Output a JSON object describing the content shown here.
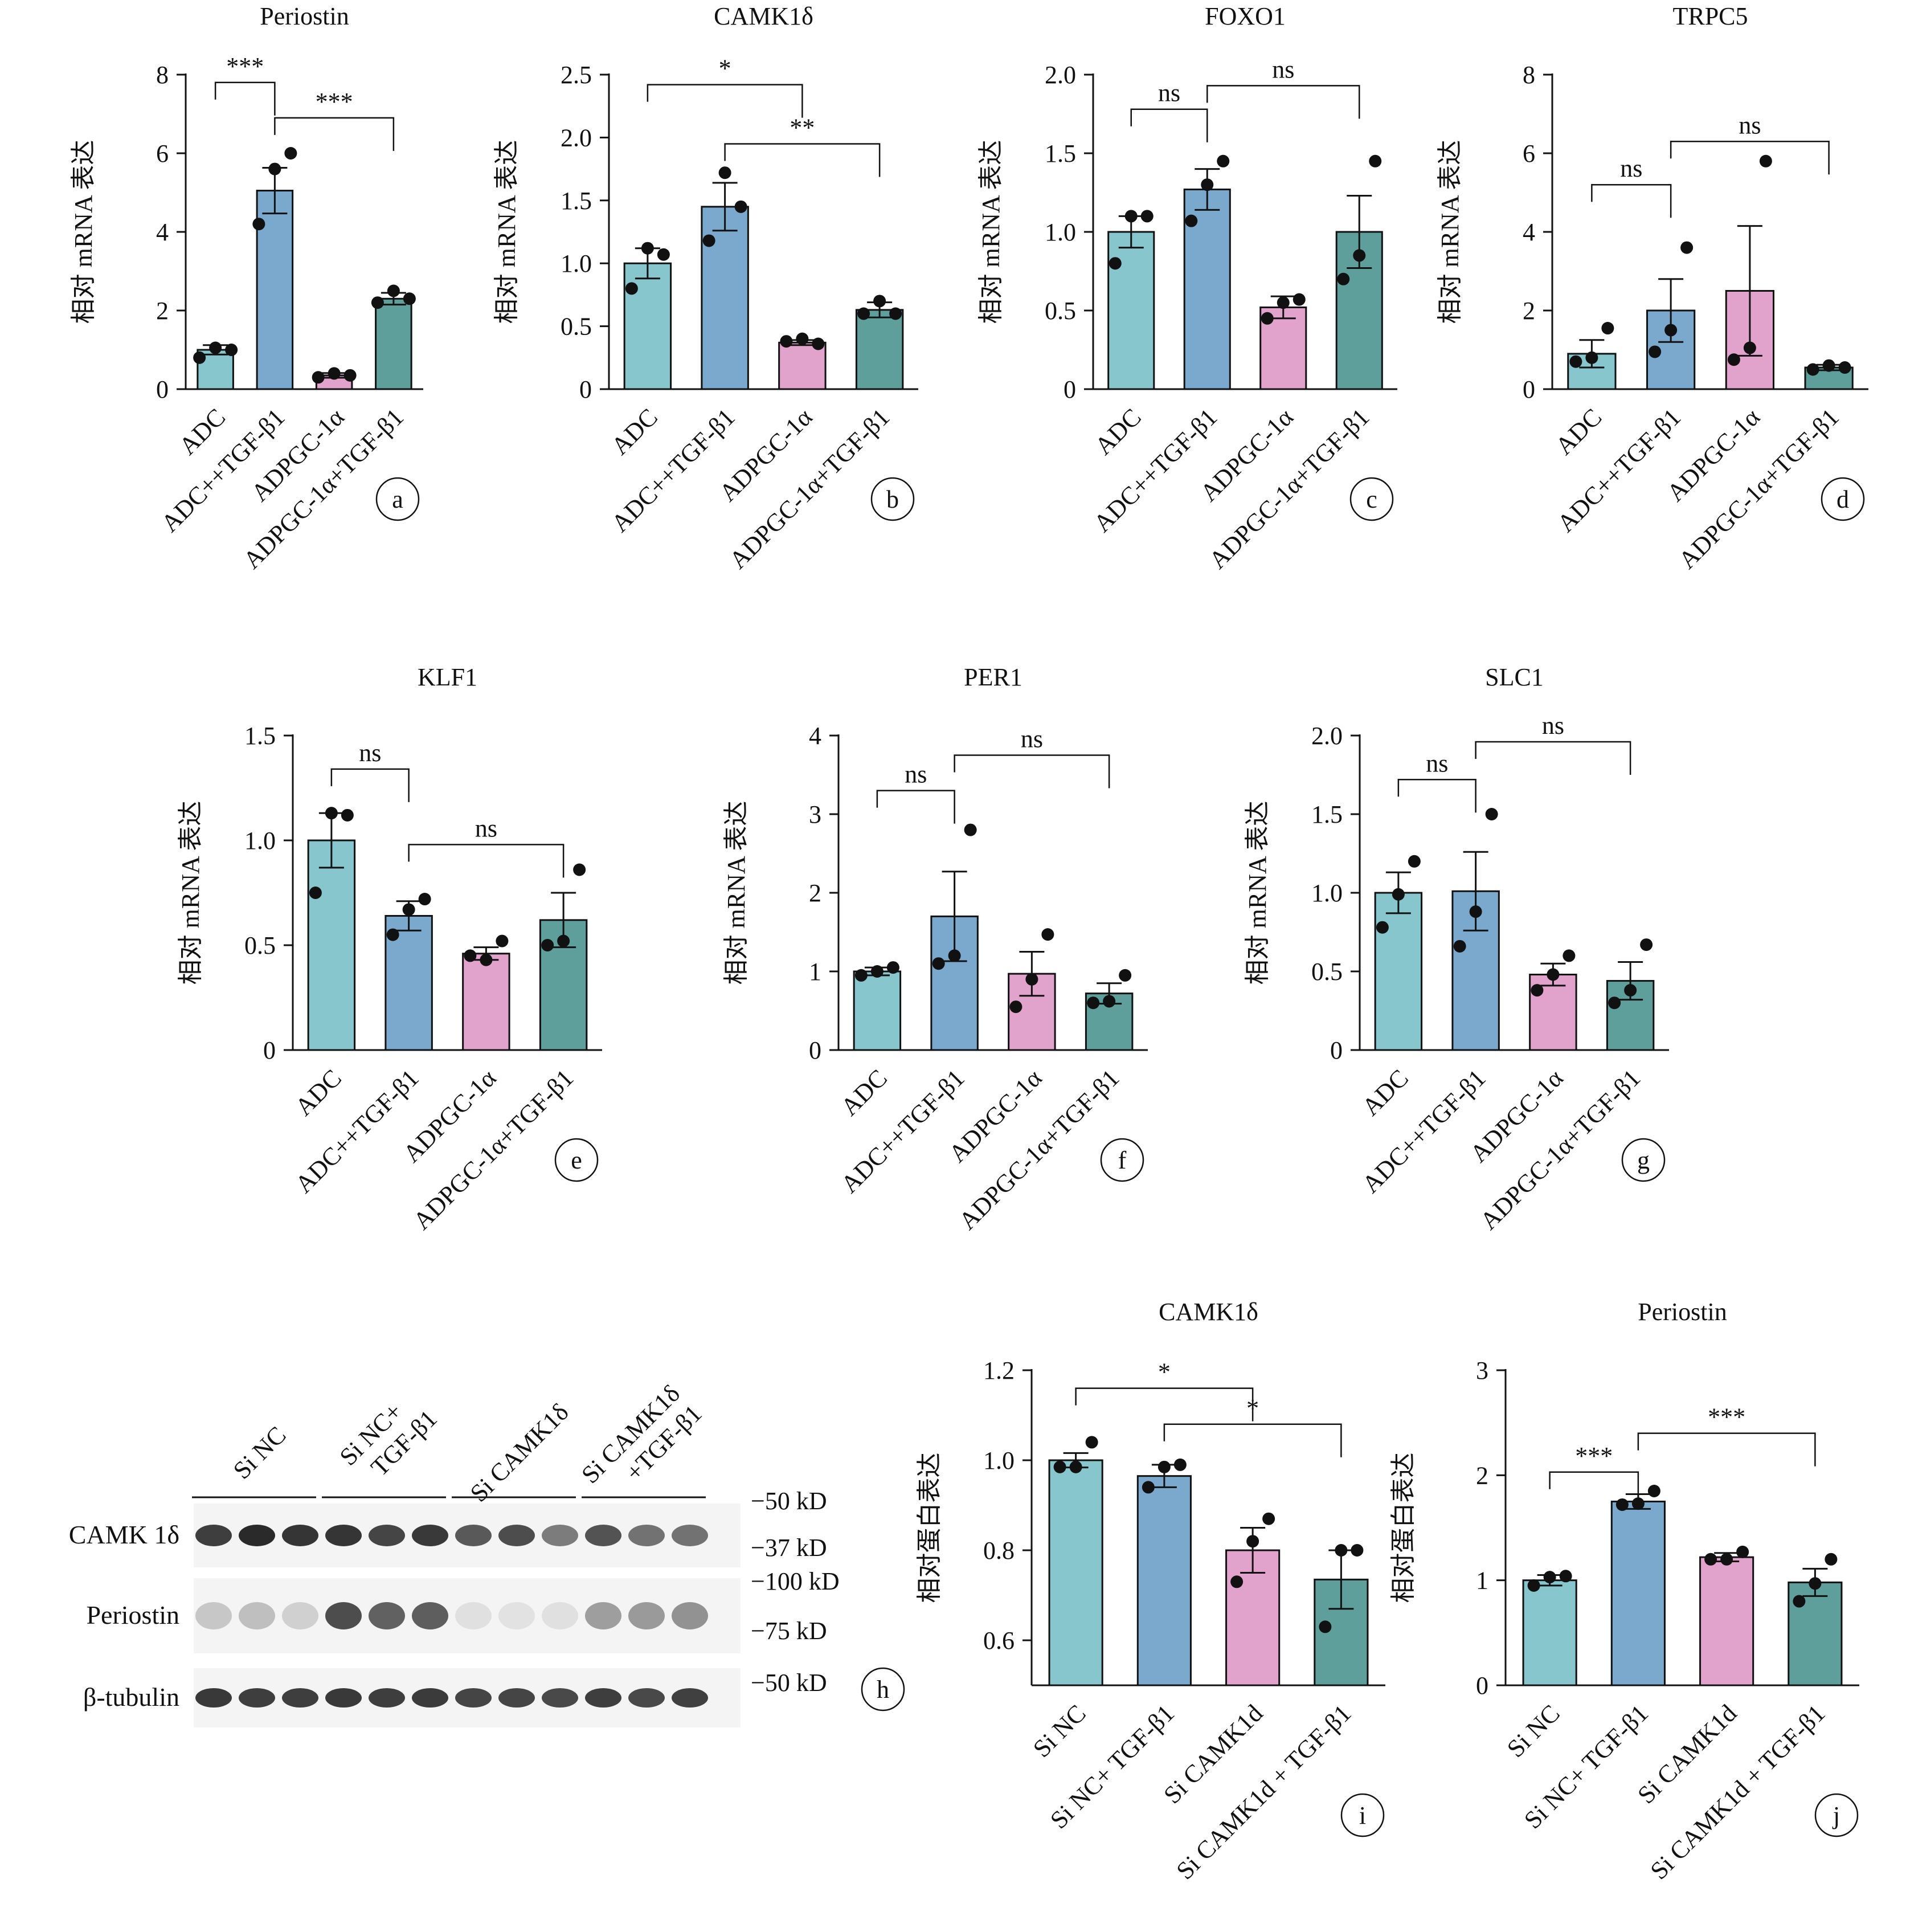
{
  "chart_data": [
    {
      "id": "a",
      "type": "bar",
      "title": "Periostin",
      "ylabel": "相对 mRNA 表达",
      "ylim": [
        0,
        8
      ],
      "yticks": [
        0,
        2,
        4,
        6,
        8
      ],
      "ytick_labels": [
        "0",
        "2",
        "4",
        "6",
        "8"
      ],
      "categories": [
        "ADC",
        "ADC++TGF-β1",
        "ADPGC-1α",
        "ADPGC-1α+TGF-β1"
      ],
      "values": [
        1.0,
        5.05,
        0.35,
        2.3
      ],
      "errors": [
        0.12,
        0.58,
        0.06,
        0.15
      ],
      "points": [
        [
          0.8,
          1.05,
          1.0
        ],
        [
          4.2,
          5.6,
          6.0
        ],
        [
          0.3,
          0.4,
          0.35
        ],
        [
          2.2,
          2.5,
          2.3
        ]
      ],
      "significance": [
        {
          "from": 0,
          "to": 1,
          "label": "***",
          "y": 7.8
        },
        {
          "from": 1,
          "to": 3,
          "label": "***",
          "y": 6.9
        }
      ]
    },
    {
      "id": "b",
      "type": "bar",
      "title": "CAMK1δ",
      "ylabel": "相对 mRNA 表达",
      "ylim": [
        0,
        2.5
      ],
      "yticks": [
        0,
        0.5,
        1.0,
        1.5,
        2.0,
        2.5
      ],
      "ytick_labels": [
        "0",
        "0.5",
        "1.0",
        "1.5",
        "2.0",
        "2.5"
      ],
      "categories": [
        "ADC",
        "ADC++TGF-β1",
        "ADPGC-1α",
        "ADPGC-1α+TGF-β1"
      ],
      "values": [
        1.0,
        1.45,
        0.37,
        0.63
      ],
      "errors": [
        0.12,
        0.19,
        0.02,
        0.06
      ],
      "points": [
        [
          0.8,
          1.12,
          1.07
        ],
        [
          1.18,
          1.72,
          1.45
        ],
        [
          0.38,
          0.4,
          0.36
        ],
        [
          0.6,
          0.7,
          0.6
        ]
      ],
      "significance": [
        {
          "from": 0,
          "to": 2,
          "label": "*",
          "y": 2.42
        },
        {
          "from": 1,
          "to": 3,
          "label": "**",
          "y": 1.95
        }
      ]
    },
    {
      "id": "c",
      "type": "bar",
      "title": "FOXO1",
      "ylabel": "相对 mRNA 表达",
      "ylim": [
        0,
        2.0
      ],
      "yticks": [
        0,
        0.5,
        1.0,
        1.5,
        2.0
      ],
      "ytick_labels": [
        "0",
        "0.5",
        "1.0",
        "1.5",
        "2.0"
      ],
      "categories": [
        "ADC",
        "ADC++TGF-β1",
        "ADPGC-1α",
        "ADPGC-1α+TGF-β1"
      ],
      "values": [
        1.0,
        1.27,
        0.52,
        1.0
      ],
      "errors": [
        0.1,
        0.13,
        0.07,
        0.23
      ],
      "points": [
        [
          0.8,
          1.1,
          1.1
        ],
        [
          1.07,
          1.3,
          1.45
        ],
        [
          0.45,
          0.55,
          0.57
        ],
        [
          0.7,
          0.85,
          1.45
        ]
      ],
      "significance": [
        {
          "from": 0,
          "to": 1,
          "label": "ns",
          "y": 1.78
        },
        {
          "from": 1,
          "to": 3,
          "label": "ns",
          "y": 1.93
        }
      ]
    },
    {
      "id": "d",
      "type": "bar",
      "title": "TRPC5",
      "ylabel": "相对 mRNA 表达",
      "ylim": [
        0,
        8
      ],
      "yticks": [
        0,
        2,
        4,
        6,
        8
      ],
      "ytick_labels": [
        "0",
        "2",
        "4",
        "6",
        "8"
      ],
      "categories": [
        "ADC",
        "ADC++TGF-β1",
        "ADPGC-1α",
        "ADPGC-1α+TGF-β1"
      ],
      "values": [
        0.9,
        2.0,
        2.5,
        0.55
      ],
      "errors": [
        0.35,
        0.8,
        1.65,
        0.07
      ],
      "points": [
        [
          0.7,
          0.8,
          1.55
        ],
        [
          0.95,
          1.5,
          3.6
        ],
        [
          0.75,
          1.05,
          5.8
        ],
        [
          0.5,
          0.6,
          0.55
        ]
      ],
      "significance": [
        {
          "from": 0,
          "to": 1,
          "label": "ns",
          "y": 5.2
        },
        {
          "from": 1,
          "to": 3,
          "label": "ns",
          "y": 6.3
        }
      ]
    },
    {
      "id": "e",
      "type": "bar",
      "title": "KLF1",
      "ylabel": "相对 mRNA 表达",
      "ylim": [
        0,
        1.5
      ],
      "yticks": [
        0,
        0.5,
        1.0,
        1.5
      ],
      "ytick_labels": [
        "0",
        "0.5",
        "1.0",
        "1.5"
      ],
      "categories": [
        "ADC",
        "ADC++TGF-β1",
        "ADPGC-1α",
        "ADPGC-1α+TGF-β1"
      ],
      "values": [
        1.0,
        0.64,
        0.46,
        0.62
      ],
      "errors": [
        0.13,
        0.07,
        0.03,
        0.13
      ],
      "points": [
        [
          0.75,
          1.13,
          1.12
        ],
        [
          0.55,
          0.67,
          0.72
        ],
        [
          0.45,
          0.43,
          0.52
        ],
        [
          0.5,
          0.52,
          0.86
        ]
      ],
      "significance": [
        {
          "from": 0,
          "to": 1,
          "label": "ns",
          "y": 1.34
        },
        {
          "from": 1,
          "to": 3,
          "label": "ns",
          "y": 0.98
        }
      ]
    },
    {
      "id": "f",
      "type": "bar",
      "title": "PER1",
      "ylabel": "相对 mRNA 表达",
      "ylim": [
        0,
        4
      ],
      "yticks": [
        0,
        1,
        2,
        3,
        4
      ],
      "ytick_labels": [
        "0",
        "1",
        "2",
        "3",
        "4"
      ],
      "categories": [
        "ADC",
        "ADC++TGF-β1",
        "ADPGC-1α",
        "ADPGC-1α+TGF-β1"
      ],
      "values": [
        1.0,
        1.7,
        0.97,
        0.72
      ],
      "errors": [
        0.05,
        0.57,
        0.28,
        0.13
      ],
      "points": [
        [
          0.95,
          1.0,
          1.05
        ],
        [
          1.1,
          1.2,
          2.8
        ],
        [
          0.55,
          0.9,
          1.47
        ],
        [
          0.6,
          0.62,
          0.95
        ]
      ],
      "significance": [
        {
          "from": 0,
          "to": 1,
          "label": "ns",
          "y": 3.3
        },
        {
          "from": 1,
          "to": 3,
          "label": "ns",
          "y": 3.75
        }
      ]
    },
    {
      "id": "g",
      "type": "bar",
      "title": "SLC1",
      "ylabel": "相对 mRNA 表达",
      "ylim": [
        0,
        2.0
      ],
      "yticks": [
        0,
        0.5,
        1.0,
        1.5,
        2.0
      ],
      "ytick_labels": [
        "0",
        "0.5",
        "1.0",
        "1.5",
        "2.0"
      ],
      "categories": [
        "ADC",
        "ADC++TGF-β1",
        "ADPGC-1α",
        "ADPGC-1α+TGF-β1"
      ],
      "values": [
        1.0,
        1.01,
        0.48,
        0.44
      ],
      "errors": [
        0.13,
        0.25,
        0.07,
        0.12
      ],
      "points": [
        [
          0.78,
          0.99,
          1.2
        ],
        [
          0.66,
          0.88,
          1.5
        ],
        [
          0.38,
          0.48,
          0.6
        ],
        [
          0.3,
          0.38,
          0.67
        ]
      ],
      "significance": [
        {
          "from": 0,
          "to": 1,
          "label": "ns",
          "y": 1.72
        },
        {
          "from": 1,
          "to": 3,
          "label": "ns",
          "y": 1.96
        }
      ]
    },
    {
      "id": "i",
      "type": "bar",
      "title": "CAMK1δ",
      "ylabel": "相对蛋白表达",
      "ylim": [
        0.5,
        1.2
      ],
      "yticks": [
        0.6,
        0.8,
        1.0,
        1.2
      ],
      "ytick_labels": [
        "0.6",
        "0.8",
        "1.0",
        "1.2"
      ],
      "categories": [
        "Si NC",
        "Si NC+ TGF-β1",
        "Si CAMK1d",
        "Si CAMK1d + TGF-β1"
      ],
      "values": [
        1.0,
        0.965,
        0.8,
        0.735
      ],
      "errors": [
        0.016,
        0.025,
        0.05,
        0.065
      ],
      "points": [
        [
          0.985,
          0.985,
          1.04
        ],
        [
          0.94,
          0.985,
          0.99
        ],
        [
          0.73,
          0.82,
          0.87
        ],
        [
          0.63,
          0.8,
          0.8
        ]
      ],
      "significance": [
        {
          "from": 0,
          "to": 2,
          "label": "*",
          "y": 1.16
        },
        {
          "from": 1,
          "to": 3,
          "label": "*",
          "y": 1.08
        }
      ]
    },
    {
      "id": "j",
      "type": "bar",
      "title": "Periostin",
      "ylabel": "相对蛋白表达",
      "ylim": [
        0,
        3
      ],
      "yticks": [
        0,
        1,
        2,
        3
      ],
      "ytick_labels": [
        "0",
        "1",
        "2",
        "3"
      ],
      "categories": [
        "Si NC",
        "Si NC+ TGF-β1",
        "Si CAMK1d",
        "Si CAMK1d + TGF-β1"
      ],
      "values": [
        1.0,
        1.75,
        1.22,
        0.98
      ],
      "errors": [
        0.05,
        0.07,
        0.04,
        0.13
      ],
      "points": [
        [
          0.95,
          1.03,
          1.04
        ],
        [
          1.72,
          1.73,
          1.85
        ],
        [
          1.2,
          1.2,
          1.27
        ],
        [
          0.8,
          0.97,
          1.2
        ]
      ],
      "significance": [
        {
          "from": 0,
          "to": 1,
          "label": "***",
          "y": 2.03
        },
        {
          "from": 1,
          "to": 3,
          "label": "***",
          "y": 2.4
        }
      ]
    }
  ],
  "colors": [
    "#86c6cc",
    "#7aa9cd",
    "#e1a2cc",
    "#5f9f9b"
  ],
  "western_blot": {
    "id": "h",
    "groups": [
      {
        "line1": "Si NC",
        "line2": ""
      },
      {
        "line1": "Si NC+",
        "line2": "TGF-β1"
      },
      {
        "line1": "Si CAMK1δ",
        "line2": ""
      },
      {
        "line1": "Si CAMK1δ",
        "line2": "+TGF-β1"
      }
    ],
    "rows": [
      {
        "label": "CAMK 1δ",
        "intensities": [
          0.85,
          0.95,
          0.9,
          0.9,
          0.82,
          0.88,
          0.72,
          0.78,
          0.55,
          0.75,
          0.6,
          0.6
        ]
      },
      {
        "label": "Periostin",
        "intensities": [
          0.18,
          0.22,
          0.14,
          0.78,
          0.68,
          0.7,
          0.06,
          0.05,
          0.06,
          0.38,
          0.4,
          0.44
        ]
      },
      {
        "label": "β-tubulin",
        "intensities": [
          0.88,
          0.85,
          0.85,
          0.88,
          0.85,
          0.87,
          0.82,
          0.82,
          0.8,
          0.85,
          0.8,
          0.84
        ]
      }
    ],
    "markers": [
      "−50 kD",
      "−37 kD",
      "−100 kD",
      "−75 kD",
      "−50 kD"
    ]
  }
}
